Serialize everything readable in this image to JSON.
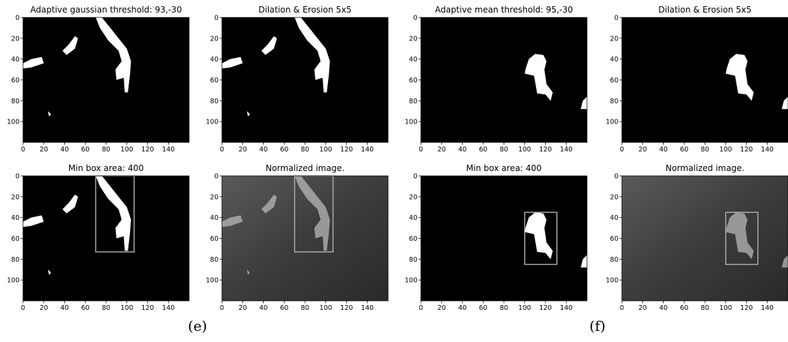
{
  "chart_data": [
    {
      "type": "image",
      "title": "Adaptive gaussian threshold: 93,-30",
      "xlim": [
        0,
        160
      ],
      "ylim": [
        120,
        0
      ],
      "xticks": [
        0,
        20,
        40,
        60,
        80,
        100,
        120,
        140
      ],
      "yticks": [
        0,
        20,
        40,
        60,
        80,
        100
      ]
    },
    {
      "type": "image",
      "title": "Dilation & Erosion 5x5",
      "xlim": [
        0,
        160
      ],
      "ylim": [
        120,
        0
      ],
      "xticks": [
        0,
        20,
        40,
        60,
        80,
        100,
        120,
        140
      ],
      "yticks": [
        0,
        20,
        40,
        60,
        80,
        100
      ]
    },
    {
      "type": "image",
      "title": "Adaptive mean threshold: 95,-30",
      "xlim": [
        0,
        160
      ],
      "ylim": [
        120,
        0
      ],
      "xticks": [
        0,
        20,
        40,
        60,
        80,
        100,
        120,
        140
      ],
      "yticks": [
        0,
        20,
        40,
        60,
        80,
        100
      ]
    },
    {
      "type": "image",
      "title": "Dilation & Erosion 5x5",
      "xlim": [
        0,
        160
      ],
      "ylim": [
        120,
        0
      ],
      "xticks": [
        0,
        20,
        40,
        60,
        80,
        100,
        120,
        140
      ],
      "yticks": [
        0,
        20,
        40,
        60,
        80,
        100
      ]
    },
    {
      "type": "image",
      "title": "Min box area: 400",
      "xlim": [
        0,
        160
      ],
      "ylim": [
        120,
        0
      ],
      "xticks": [
        0,
        20,
        40,
        60,
        80,
        100,
        120,
        140
      ],
      "yticks": [
        0,
        20,
        40,
        60,
        80,
        100
      ],
      "boxes": [
        {
          "x": [
            70,
            107
          ],
          "y": [
            0,
            73
          ]
        }
      ]
    },
    {
      "type": "image",
      "title": "Normalized image.",
      "xlim": [
        0,
        160
      ],
      "ylim": [
        120,
        0
      ],
      "xticks": [
        0,
        20,
        40,
        60,
        80,
        100,
        120,
        140
      ],
      "yticks": [
        0,
        20,
        40,
        60,
        80,
        100
      ],
      "boxes": [
        {
          "x": [
            70,
            107
          ],
          "y": [
            0,
            73
          ]
        }
      ]
    },
    {
      "type": "image",
      "title": "Min box area: 400",
      "xlim": [
        0,
        160
      ],
      "ylim": [
        120,
        0
      ],
      "xticks": [
        0,
        20,
        40,
        60,
        80,
        100,
        120,
        140
      ],
      "yticks": [
        0,
        20,
        40,
        60,
        80,
        100
      ],
      "boxes": [
        {
          "x": [
            100,
            131
          ],
          "y": [
            35,
            85
          ]
        }
      ]
    },
    {
      "type": "image",
      "title": "Normalized image.",
      "xlim": [
        0,
        160
      ],
      "ylim": [
        120,
        0
      ],
      "xticks": [
        0,
        20,
        40,
        60,
        80,
        100,
        120,
        140
      ],
      "yticks": [
        0,
        20,
        40,
        60,
        80,
        100
      ],
      "boxes": [
        {
          "x": [
            100,
            131
          ],
          "y": [
            35,
            85
          ]
        }
      ]
    }
  ],
  "captions": [
    "(e)",
    "(f)"
  ]
}
